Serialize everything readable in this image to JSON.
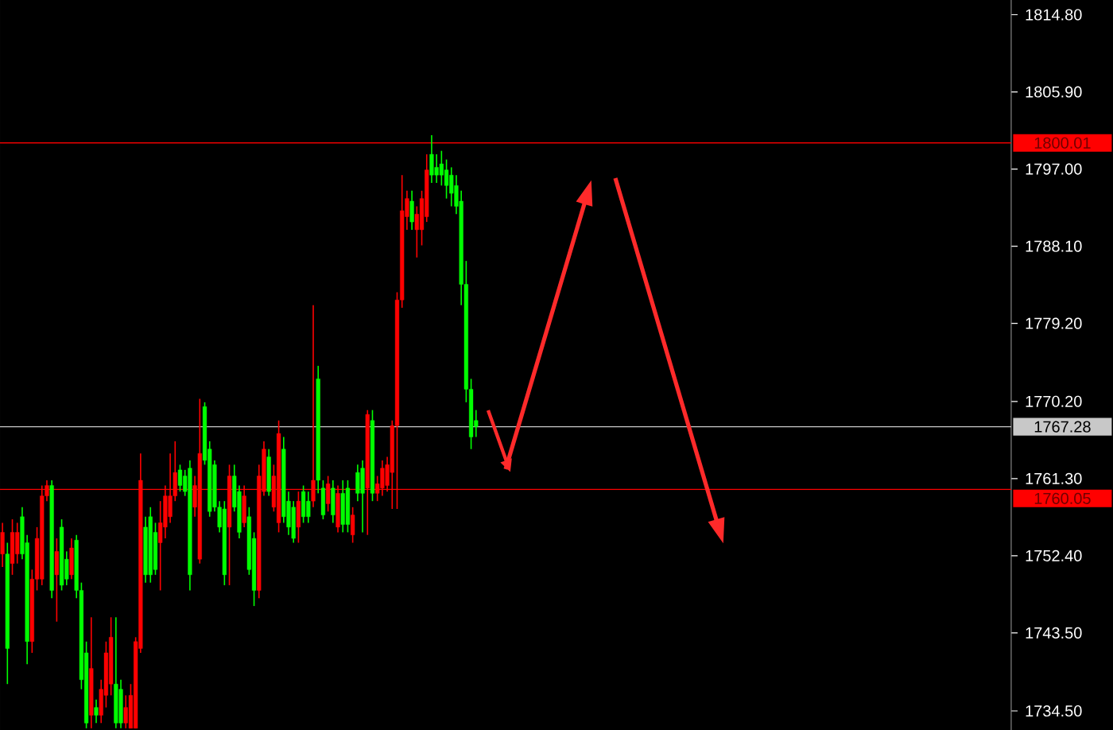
{
  "chart_data": {
    "type": "candlestick",
    "ohlc": [
      [
        1752.6,
        1756.2,
        1751.1,
        1755.1
      ],
      [
        1752.6,
        1753.9,
        1737.6,
        1741.7
      ],
      [
        1751.5,
        1756.6,
        1750.2,
        1755.1
      ],
      [
        1752.6,
        1756.2,
        1751.5,
        1755.1
      ],
      [
        1756.9,
        1758.0,
        1752.0,
        1752.6
      ],
      [
        1753.9,
        1754.8,
        1739.9,
        1742.5
      ],
      [
        1742.5,
        1750.8,
        1741.2,
        1749.7
      ],
      [
        1749.7,
        1755.7,
        1748.4,
        1754.4
      ],
      [
        1749.7,
        1760.5,
        1749.0,
        1759.3
      ],
      [
        1759.3,
        1761.1,
        1758.7,
        1760.5
      ],
      [
        1760.5,
        1761.1,
        1747.5,
        1748.4
      ],
      [
        1750.2,
        1754.4,
        1744.8,
        1752.9
      ],
      [
        1755.7,
        1756.6,
        1748.4,
        1749.0
      ],
      [
        1752.0,
        1752.9,
        1749.0,
        1749.7
      ],
      [
        1750.2,
        1754.4,
        1749.7,
        1753.3
      ],
      [
        1754.2,
        1754.8,
        1747.5,
        1748.4
      ],
      [
        1748.4,
        1749.3,
        1737.0,
        1738.1
      ],
      [
        1741.2,
        1742.5,
        1732.5,
        1733.1
      ],
      [
        1734.0,
        1745.3,
        1732.5,
        1739.4
      ],
      [
        1734.9,
        1735.8,
        1733.1,
        1734.0
      ],
      [
        1734.0,
        1738.1,
        1733.1,
        1737.0
      ],
      [
        1736.3,
        1742.5,
        1734.9,
        1741.2
      ],
      [
        1737.6,
        1745.3,
        1736.3,
        1743.0
      ],
      [
        1737.6,
        1745.3,
        1732.5,
        1733.1
      ],
      [
        1737.0,
        1738.1,
        1732.5,
        1733.1
      ],
      [
        1733.1,
        1736.3,
        1732.5,
        1734.9
      ],
      [
        1732.5,
        1737.6,
        1732.5,
        1736.3
      ],
      [
        1732.5,
        1743.0,
        1732.5,
        1742.5
      ],
      [
        1741.7,
        1764.2,
        1741.2,
        1761.1
      ],
      [
        1755.7,
        1756.9,
        1749.3,
        1750.2
      ],
      [
        1756.9,
        1758.0,
        1749.3,
        1750.2
      ],
      [
        1755.1,
        1756.2,
        1750.2,
        1750.8
      ],
      [
        1753.9,
        1758.7,
        1748.4,
        1756.2
      ],
      [
        1755.7,
        1760.5,
        1754.4,
        1759.3
      ],
      [
        1756.9,
        1764.2,
        1756.2,
        1759.3
      ],
      [
        1759.3,
        1765.6,
        1758.7,
        1762.0
      ],
      [
        1762.3,
        1762.9,
        1759.8,
        1760.5
      ],
      [
        1761.6,
        1762.3,
        1759.3,
        1759.8
      ],
      [
        1762.5,
        1763.4,
        1748.4,
        1750.2
      ],
      [
        1758.0,
        1761.6,
        1756.9,
        1760.5
      ],
      [
        1752.0,
        1770.5,
        1751.5,
        1764.2
      ],
      [
        1769.6,
        1770.1,
        1762.9,
        1763.4
      ],
      [
        1764.7,
        1765.6,
        1756.9,
        1757.5
      ],
      [
        1762.9,
        1763.4,
        1757.5,
        1758.0
      ],
      [
        1758.0,
        1758.7,
        1755.1,
        1755.7
      ],
      [
        1757.8,
        1758.7,
        1749.0,
        1750.2
      ],
      [
        1755.7,
        1762.9,
        1749.0,
        1761.6
      ],
      [
        1761.6,
        1762.9,
        1757.5,
        1758.0
      ],
      [
        1759.8,
        1760.5,
        1754.4,
        1755.1
      ],
      [
        1756.2,
        1760.5,
        1755.7,
        1759.3
      ],
      [
        1756.9,
        1758.0,
        1750.2,
        1750.8
      ],
      [
        1754.4,
        1755.1,
        1746.6,
        1748.4
      ],
      [
        1748.4,
        1762.9,
        1747.5,
        1761.6
      ],
      [
        1759.8,
        1765.6,
        1759.3,
        1764.7
      ],
      [
        1763.8,
        1764.7,
        1759.3,
        1759.8
      ],
      [
        1758.0,
        1762.9,
        1757.5,
        1761.6
      ],
      [
        1756.2,
        1768.0,
        1755.1,
        1766.5
      ],
      [
        1764.7,
        1766.1,
        1756.2,
        1756.9
      ],
      [
        1758.7,
        1759.8,
        1754.8,
        1755.7
      ],
      [
        1758.0,
        1758.7,
        1753.9,
        1754.4
      ],
      [
        1755.7,
        1759.8,
        1753.9,
        1758.7
      ],
      [
        1759.8,
        1760.5,
        1756.2,
        1756.9
      ],
      [
        1758.7,
        1759.8,
        1756.2,
        1756.9
      ],
      [
        1758.7,
        1781.3,
        1758.0,
        1761.1
      ],
      [
        1772.8,
        1774.3,
        1759.6,
        1761.1
      ],
      [
        1760.2,
        1761.1,
        1756.6,
        1757.1
      ],
      [
        1758.4,
        1761.6,
        1757.5,
        1760.7
      ],
      [
        1760.2,
        1761.1,
        1756.2,
        1757.1
      ],
      [
        1755.7,
        1760.5,
        1755.1,
        1759.6
      ],
      [
        1759.6,
        1761.1,
        1755.1,
        1756.0
      ],
      [
        1760.2,
        1761.1,
        1755.1,
        1756.0
      ],
      [
        1754.8,
        1758.0,
        1753.9,
        1757.1
      ],
      [
        1762.0,
        1762.9,
        1758.7,
        1759.6
      ],
      [
        1762.5,
        1763.4,
        1755.1,
        1759.6
      ],
      [
        1760.2,
        1769.2,
        1754.8,
        1768.7
      ],
      [
        1768.0,
        1769.2,
        1758.7,
        1759.6
      ],
      [
        1759.6,
        1761.6,
        1758.7,
        1760.7
      ],
      [
        1760.2,
        1763.4,
        1759.3,
        1762.5
      ],
      [
        1760.5,
        1763.8,
        1759.8,
        1762.9
      ],
      [
        1762.0,
        1768.0,
        1757.8,
        1767.4
      ],
      [
        1767.4,
        1782.8,
        1757.8,
        1781.9
      ],
      [
        1781.9,
        1796.3,
        1781.0,
        1792.2
      ],
      [
        1791.5,
        1794.5,
        1790.0,
        1793.6
      ],
      [
        1793.3,
        1794.5,
        1790.0,
        1790.9
      ],
      [
        1790.0,
        1792.7,
        1786.8,
        1791.8
      ],
      [
        1790.0,
        1794.5,
        1788.2,
        1793.6
      ],
      [
        1791.5,
        1798.7,
        1790.9,
        1796.9
      ],
      [
        1798.7,
        1800.9,
        1795.4,
        1796.3
      ],
      [
        1797.2,
        1798.7,
        1795.4,
        1796.3
      ],
      [
        1797.6,
        1799.1,
        1795.1,
        1796.3
      ],
      [
        1796.9,
        1798.1,
        1793.6,
        1795.1
      ],
      [
        1796.3,
        1797.2,
        1792.7,
        1794.2
      ],
      [
        1795.1,
        1796.3,
        1791.8,
        1792.7
      ],
      [
        1793.3,
        1794.5,
        1781.3,
        1783.7
      ],
      [
        1783.7,
        1786.4,
        1770.1,
        1771.6
      ],
      [
        1771.6,
        1772.8,
        1764.7,
        1766.1
      ],
      [
        1768.0,
        1769.2,
        1766.1,
        1767.3
      ],
      null,
      null,
      null,
      null,
      null,
      null,
      null,
      null,
      null,
      null,
      null,
      null,
      null,
      null,
      null,
      null,
      null,
      null,
      null,
      null,
      null,
      null,
      null,
      null,
      null,
      null,
      null,
      null,
      null,
      null,
      null,
      null,
      null,
      null,
      null,
      null,
      null,
      null,
      null,
      null,
      null,
      null,
      null,
      null,
      null,
      null,
      null,
      null,
      null,
      null,
      null,
      null,
      null,
      null,
      null,
      null,
      null,
      null,
      null,
      null,
      null,
      null,
      null,
      null,
      null,
      null,
      null,
      null,
      null,
      null,
      null,
      null,
      null,
      null,
      null,
      null,
      null,
      null,
      null,
      null,
      null,
      null,
      null,
      null,
      null,
      null,
      null,
      null,
      null,
      null,
      null,
      null,
      null,
      null,
      null,
      null,
      null,
      null,
      null,
      null,
      null,
      null,
      null,
      null,
      null,
      null,
      null,
      null
    ],
    "colors": [
      "#ff0000",
      "#00ff00",
      "#ff0000",
      "#ff0000",
      "#00ff00",
      "#00ff00",
      "#ff0000",
      "#ff0000",
      "#ff0000",
      "#ff0000",
      "#00ff00",
      "#ff0000",
      "#00ff00",
      "#00ff00",
      "#ff0000",
      "#00ff00",
      "#00ff00",
      "#00ff00",
      "#ff0000",
      "#00ff00",
      "#ff0000",
      "#ff0000",
      "#ff0000",
      "#00ff00",
      "#00ff00",
      "#ff0000",
      "#ff0000",
      "#ff0000",
      "#ff0000",
      "#00ff00",
      "#00ff00",
      "#00ff00",
      "#ff0000",
      "#ff0000",
      "#ff0000",
      "#ff0000",
      "#00ff00",
      "#00ff00",
      "#00ff00",
      "#ff0000",
      "#ff0000",
      "#00ff00",
      "#00ff00",
      "#00ff00",
      "#00ff00",
      "#00ff00",
      "#ff0000",
      "#00ff00",
      "#00ff00",
      "#ff0000",
      "#00ff00",
      "#00ff00",
      "#ff0000",
      "#ff0000",
      "#00ff00",
      "#ff0000",
      "#ff0000",
      "#00ff00",
      "#00ff00",
      "#00ff00",
      "#ff0000",
      "#00ff00",
      "#00ff00",
      "#ff0000",
      "#00ff00",
      "#00ff00",
      "#ff0000",
      "#00ff00",
      "#ff0000",
      "#00ff00",
      "#00ff00",
      "#ff0000",
      "#00ff00",
      "#00ff00",
      "#ff0000",
      "#00ff00",
      "#ff0000",
      "#ff0000",
      "#ff0000",
      "#ff0000",
      "#ff0000",
      "#ff0000",
      "#ff0000",
      "#00ff00",
      "#ff0000",
      "#ff0000",
      "#ff0000",
      "#00ff00",
      "#00ff00",
      "#00ff00",
      "#00ff00",
      "#00ff00",
      "#00ff00",
      "#00ff00",
      "#00ff00",
      "#00ff00",
      "#00ff00",
      null,
      null,
      null,
      null,
      null,
      null,
      null,
      null,
      null,
      null,
      null,
      null,
      null,
      null,
      null,
      null,
      null,
      null,
      null,
      null,
      null,
      null,
      null,
      null,
      null,
      null,
      null,
      null,
      null,
      null,
      null,
      null,
      null,
      null,
      null,
      null,
      null,
      null,
      null,
      null,
      null,
      null,
      null,
      null,
      null,
      null,
      null,
      null,
      null,
      null,
      null,
      null,
      null,
      null,
      null,
      null,
      null,
      null,
      null,
      null,
      null,
      null,
      null,
      null,
      null,
      null,
      null,
      null,
      null,
      null,
      null,
      null,
      null,
      null,
      null,
      null,
      null,
      null,
      null,
      null,
      null,
      null,
      null,
      null,
      null,
      null,
      null,
      null,
      null,
      null,
      null,
      null,
      null,
      null,
      null,
      null,
      null,
      null,
      null,
      null,
      null,
      null,
      null,
      null,
      null,
      null,
      null,
      null
    ],
    "categories": [
      null,
      null,
      null,
      null,
      null,
      null,
      null,
      null,
      null,
      null,
      null,
      null,
      null,
      null,
      null,
      null,
      null,
      null,
      null,
      null,
      null,
      null,
      null,
      null,
      null,
      null,
      null,
      null,
      null,
      null,
      null,
      null,
      null,
      null,
      null,
      null,
      null,
      null,
      null,
      null,
      null,
      null,
      null,
      null,
      null,
      null,
      null,
      null,
      null,
      null,
      null,
      null,
      null,
      null,
      null,
      null,
      null,
      null,
      null,
      null,
      null,
      null,
      null,
      null,
      null,
      null,
      null,
      null,
      null,
      null,
      null,
      null,
      null,
      null,
      null,
      null,
      null,
      null,
      null,
      null,
      null,
      null,
      null,
      null,
      null,
      null,
      null,
      null,
      null,
      null,
      null,
      null,
      null,
      null,
      null,
      null,
      null,
      null,
      null,
      null,
      null,
      null,
      null,
      null,
      null,
      null,
      null,
      null,
      null,
      null,
      null,
      null,
      null,
      null,
      null,
      null,
      null,
      null,
      null,
      null,
      null,
      null,
      null,
      null,
      null,
      null,
      null,
      null,
      null,
      null,
      null,
      null,
      null,
      null,
      null,
      null,
      null,
      null,
      null,
      null,
      null,
      null,
      null,
      null,
      null,
      null,
      null,
      null,
      null,
      null,
      null,
      null,
      null,
      null,
      null,
      null,
      null,
      null,
      null,
      null,
      null,
      null,
      null,
      null,
      null,
      null,
      null,
      null,
      null,
      null,
      null,
      null,
      null,
      null,
      null,
      null,
      null,
      null,
      null,
      null,
      null,
      null,
      null,
      null,
      null,
      null,
      null,
      null,
      null,
      null,
      null,
      null,
      null,
      null,
      null,
      null,
      null,
      null,
      null,
      null,
      null,
      null,
      null,
      null,
      null
    ],
    "ylim": [
      1732.3,
      1816.5
    ],
    "yticks": [
      {
        "value": 1734.5,
        "label": "1734.50"
      },
      {
        "value": 1743.5,
        "label": "1743.50"
      },
      {
        "value": 1752.4,
        "label": "1752.40"
      },
      {
        "value": 1761.3,
        "label": "1761.30"
      },
      {
        "value": 1770.2,
        "label": "1770.20"
      },
      {
        "value": 1779.2,
        "label": "1779.20"
      },
      {
        "value": 1788.1,
        "label": "1788.10"
      },
      {
        "value": 1797,
        "label": "1797.00"
      },
      {
        "value": 1805.9,
        "label": "1805.90"
      },
      {
        "value": 1814.8,
        "label": "1814.80"
      }
    ],
    "ref_lines": [
      {
        "axis": "y",
        "value": 1800.01,
        "label": "1800.01",
        "color": "#ff0000"
      },
      {
        "axis": "y",
        "value": 1767.28,
        "label": "1767.28",
        "color": "#c8c8c8"
      },
      {
        "axis": "y",
        "value": 1760.05,
        "label": "1760.05",
        "color": "#ff0000"
      }
    ]
  }
}
